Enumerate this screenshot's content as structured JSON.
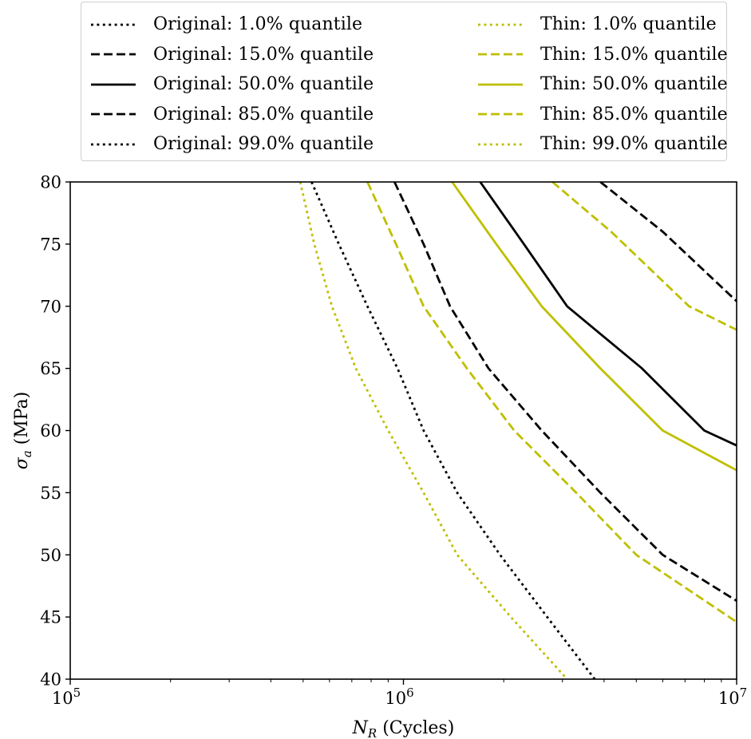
{
  "chart_data": {
    "type": "line",
    "xlabel": "N_R (Cycles)",
    "ylabel": "σ_a (MPa)",
    "x_scale": "log",
    "xlim": [
      100000,
      10000000
    ],
    "ylim": [
      40,
      80
    ],
    "x_ticks": [
      {
        "value": 100000,
        "mantissa": "10",
        "exponent": "5"
      },
      {
        "value": 1000000,
        "mantissa": "10",
        "exponent": "6"
      },
      {
        "value": 10000000,
        "mantissa": "10",
        "exponent": "7"
      }
    ],
    "y_ticks": [
      40,
      45,
      50,
      55,
      60,
      65,
      70,
      75,
      80
    ],
    "y_tick_labels": [
      "40",
      "45",
      "50",
      "55",
      "60",
      "65",
      "70",
      "75",
      "80"
    ],
    "grid": false,
    "legend_position": "above plot, two columns",
    "colors": {
      "original": "#000000",
      "thin": "#bfbf00"
    },
    "series": [
      {
        "name": "Original: 1.0% quantile",
        "group": "original",
        "style": "dotted",
        "points": [
          [
            530000,
            80
          ],
          [
            640000,
            75
          ],
          [
            780000,
            70
          ],
          [
            960000,
            65
          ],
          [
            1150000,
            60
          ],
          [
            1450000,
            55
          ],
          [
            1950000,
            50
          ],
          [
            2700000,
            45
          ],
          [
            3750000,
            40
          ]
        ]
      },
      {
        "name": "Original: 15.0% quantile",
        "group": "original",
        "style": "dashed",
        "points": [
          [
            940000,
            80
          ],
          [
            1150000,
            75
          ],
          [
            1380000,
            70
          ],
          [
            1800000,
            65
          ],
          [
            2600000,
            60
          ],
          [
            3900000,
            55
          ],
          [
            6000000,
            50
          ],
          [
            10000000,
            46.3
          ]
        ]
      },
      {
        "name": "Original: 50.0% quantile",
        "group": "original",
        "style": "solid",
        "points": [
          [
            1700000,
            80
          ],
          [
            2300000,
            75
          ],
          [
            3100000,
            70
          ],
          [
            5200000,
            65
          ],
          [
            8000000,
            60
          ],
          [
            10000000,
            58.8
          ]
        ]
      },
      {
        "name": "Original: 85.0% quantile",
        "group": "original",
        "style": "dashed",
        "points": [
          [
            3900000,
            80
          ],
          [
            6000000,
            76
          ],
          [
            10000000,
            70.4
          ]
        ]
      },
      {
        "name": "Original: 99.0% quantile",
        "group": "original",
        "style": "dotted",
        "points": []
      },
      {
        "name": "Thin: 1.0% quantile",
        "group": "thin",
        "style": "dotted",
        "points": [
          [
            490000,
            80
          ],
          [
            540000,
            75
          ],
          [
            610000,
            70
          ],
          [
            720000,
            65
          ],
          [
            900000,
            60
          ],
          [
            1150000,
            55
          ],
          [
            1450000,
            50
          ],
          [
            2100000,
            45
          ],
          [
            3100000,
            40
          ]
        ]
      },
      {
        "name": "Thin: 15.0% quantile",
        "group": "thin",
        "style": "dashed",
        "points": [
          [
            780000,
            80
          ],
          [
            950000,
            75
          ],
          [
            1150000,
            70
          ],
          [
            1550000,
            65
          ],
          [
            2150000,
            60
          ],
          [
            3300000,
            55
          ],
          [
            5000000,
            50
          ],
          [
            10000000,
            44.6
          ]
        ]
      },
      {
        "name": "Thin: 50.0% quantile",
        "group": "thin",
        "style": "solid",
        "points": [
          [
            1400000,
            80
          ],
          [
            1900000,
            75
          ],
          [
            2600000,
            70
          ],
          [
            3900000,
            65
          ],
          [
            6000000,
            60
          ],
          [
            10000000,
            56.8
          ]
        ]
      },
      {
        "name": "Thin: 85.0% quantile",
        "group": "thin",
        "style": "dashed",
        "points": [
          [
            2800000,
            80
          ],
          [
            4200000,
            76
          ],
          [
            7200000,
            70
          ],
          [
            10000000,
            68.1
          ]
        ]
      },
      {
        "name": "Thin: 99.0% quantile",
        "group": "thin",
        "style": "dotted",
        "points": []
      }
    ]
  }
}
